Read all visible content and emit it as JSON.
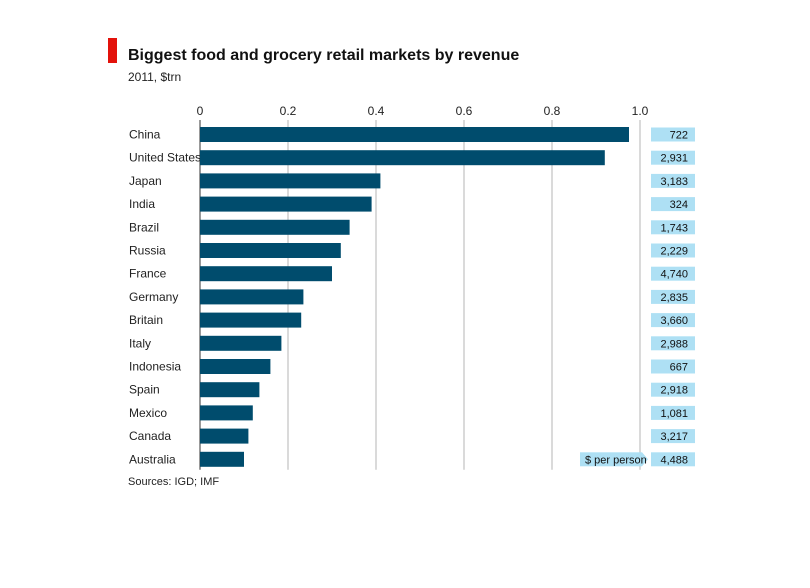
{
  "header": {
    "title": "Biggest food and grocery retail markets by revenue",
    "subtitle": "2011, $trn"
  },
  "footer": {
    "source": "Sources: IGD; IMF"
  },
  "colors": {
    "bar": "#004c6d",
    "accent": "#e3120b",
    "label_box": "#aee0f4",
    "grid": "#b5b5b5"
  },
  "chart_data": {
    "type": "bar",
    "orientation": "horizontal",
    "title": "Biggest food and grocery retail markets by revenue",
    "subtitle": "2011, $trn",
    "xlim": [
      0,
      1.0
    ],
    "x_ticks": [
      "0",
      "0.2",
      "0.4",
      "0.6",
      "0.8",
      "1.0"
    ],
    "x_tick_values": [
      0,
      0.2,
      0.4,
      0.6,
      0.8,
      1.0
    ],
    "grid": true,
    "categories": [
      "China",
      "United States",
      "Japan",
      "India",
      "Brazil",
      "Russia",
      "France",
      "Germany",
      "Britain",
      "Italy",
      "Indonesia",
      "Spain",
      "Mexico",
      "Canada",
      "Australia"
    ],
    "values": [
      0.975,
      0.92,
      0.41,
      0.39,
      0.34,
      0.32,
      0.3,
      0.235,
      0.23,
      0.185,
      0.16,
      0.135,
      0.12,
      0.11,
      0.1
    ],
    "per_person_label": "$ per person",
    "per_person": [
      "722",
      "2,931",
      "3,183",
      "324",
      "1,743",
      "2,229",
      "4,740",
      "2,835",
      "3,660",
      "2,988",
      "667",
      "2,918",
      "1,081",
      "3,217",
      "4,488"
    ]
  }
}
